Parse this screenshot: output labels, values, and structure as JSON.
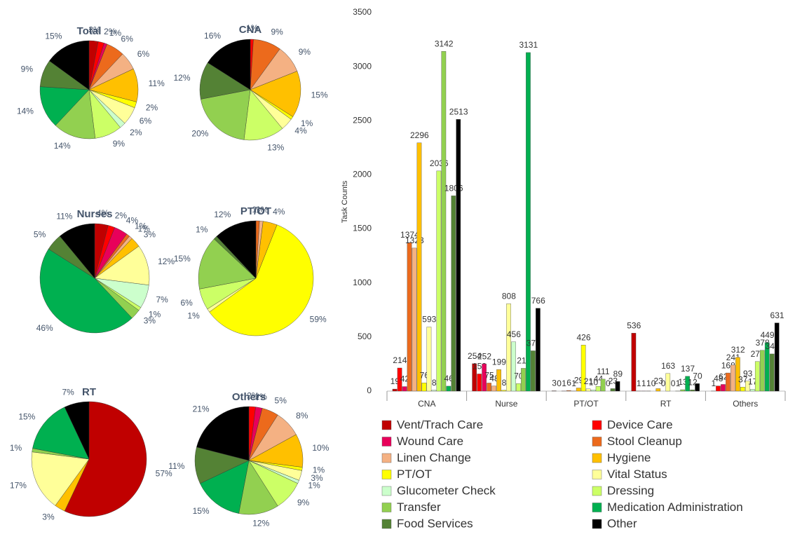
{
  "chart_data": [
    {
      "type": "bar",
      "y_label": "Task Counts",
      "categories": [
        "CNA",
        "Nurse",
        "PT/OT",
        "RT",
        "Others"
      ],
      "ylim": [
        0,
        3500
      ],
      "yticks": [
        0,
        500,
        1000,
        1500,
        2000,
        2500,
        3000,
        3500
      ],
      "series": [
        {
          "name": "Vent/Trach Care",
          "color": "#c00000",
          "values": [
            19,
            254,
            3,
            536,
            1
          ]
        },
        {
          "name": "Device Care",
          "color": "#ff0000",
          "values": [
            214,
            159,
            0,
            1,
            48
          ]
        },
        {
          "name": "Wound Care",
          "color": "#e8005a",
          "values": [
            42,
            252,
            1,
            1,
            62
          ]
        },
        {
          "name": "Stool Cleanup",
          "color": "#ec6a1c",
          "values": [
            1374,
            75,
            6,
            1,
            168
          ]
        },
        {
          "name": "Linen Change",
          "color": "#f4b183",
          "values": [
            1323,
            48,
            1,
            0,
            241
          ]
        },
        {
          "name": "Hygiene",
          "color": "#ffc000",
          "values": [
            2296,
            199,
            29,
            23,
            312
          ]
        },
        {
          "name": "PT/OT",
          "color": "#ffff00",
          "values": [
            76,
            8,
            426,
            0,
            37
          ]
        },
        {
          "name": "Vital Status",
          "color": "#ffff99",
          "values": [
            593,
            808,
            21,
            163,
            93
          ]
        },
        {
          "name": "Glucometer Check",
          "color": "#ccffcc",
          "values": [
            8,
            456,
            10,
            0,
            17
          ]
        },
        {
          "name": "Dressing",
          "color": "#ccff66",
          "values": [
            2036,
            70,
            44,
            1,
            274
          ]
        },
        {
          "name": "Transfer",
          "color": "#92d050",
          "values": [
            3142,
            211,
            111,
            13,
            378
          ]
        },
        {
          "name": "Medication Administration",
          "color": "#00b050",
          "values": [
            46,
            3131,
            0,
            137,
            449
          ]
        },
        {
          "name": "Food Services",
          "color": "#548235",
          "values": [
            1806,
            373,
            23,
            12,
            344
          ]
        },
        {
          "name": "Other",
          "color": "#000000",
          "values": [
            2513,
            766,
            89,
            70,
            631
          ]
        }
      ]
    },
    {
      "type": "pie",
      "title": "Total",
      "values": [
        3,
        2,
        1,
        6,
        6,
        11,
        2,
        6,
        2,
        9,
        14,
        14,
        9,
        15
      ],
      "value_labels": [
        "3%",
        "2%",
        "1%",
        "6%",
        "6%",
        "11%",
        "2%",
        "6%",
        "2%",
        "9%",
        "14%",
        "14%",
        "9%",
        "15%"
      ]
    },
    {
      "type": "pie",
      "title": "CNA",
      "values": [
        null,
        1,
        null,
        9,
        9,
        15,
        1,
        4,
        null,
        13,
        20,
        null,
        12,
        16
      ],
      "value_labels": [
        null,
        "1%",
        null,
        "9%",
        "9%",
        "15%",
        "1%",
        "4%",
        null,
        "13%",
        "20%",
        null,
        "12%",
        "16%"
      ]
    },
    {
      "type": "pie",
      "title": "Nurses",
      "values": [
        4,
        2,
        4,
        1,
        1,
        3,
        null,
        12,
        7,
        1,
        3,
        46,
        5,
        11
      ],
      "value_labels": [
        "4%",
        "2%",
        "4%",
        "1%",
        "1%",
        "3%",
        null,
        "12%",
        "7%",
        "1%",
        "3%",
        "46%",
        "5%",
        "11%"
      ]
    },
    {
      "type": "pie",
      "title": "PT/OT",
      "values": [
        null,
        null,
        null,
        1,
        1,
        4,
        59,
        1,
        null,
        6,
        15,
        null,
        1,
        12
      ],
      "value_labels": [
        null,
        null,
        null,
        "1%",
        "1%",
        "4%",
        "59%",
        "1%",
        null,
        "6%",
        "15%",
        null,
        "1%",
        "12%"
      ]
    },
    {
      "type": "pie",
      "title": "RT",
      "values": [
        57,
        null,
        null,
        null,
        null,
        3,
        null,
        17,
        null,
        null,
        1,
        15,
        null,
        7
      ],
      "value_labels": [
        "57%",
        null,
        null,
        null,
        null,
        "3%",
        null,
        "17%",
        null,
        null,
        "1%",
        "15%",
        null,
        "7%"
      ]
    },
    {
      "type": "pie",
      "title": "Others",
      "values": [
        null,
        2,
        2,
        5,
        8,
        10,
        1,
        3,
        1,
        9,
        12,
        15,
        11,
        21
      ],
      "value_labels": [
        null,
        "2%",
        "2%",
        "5%",
        "8%",
        "10%",
        "1%",
        "3%",
        "1%",
        "9%",
        "12%",
        "15%",
        "11%",
        "21%"
      ]
    }
  ]
}
